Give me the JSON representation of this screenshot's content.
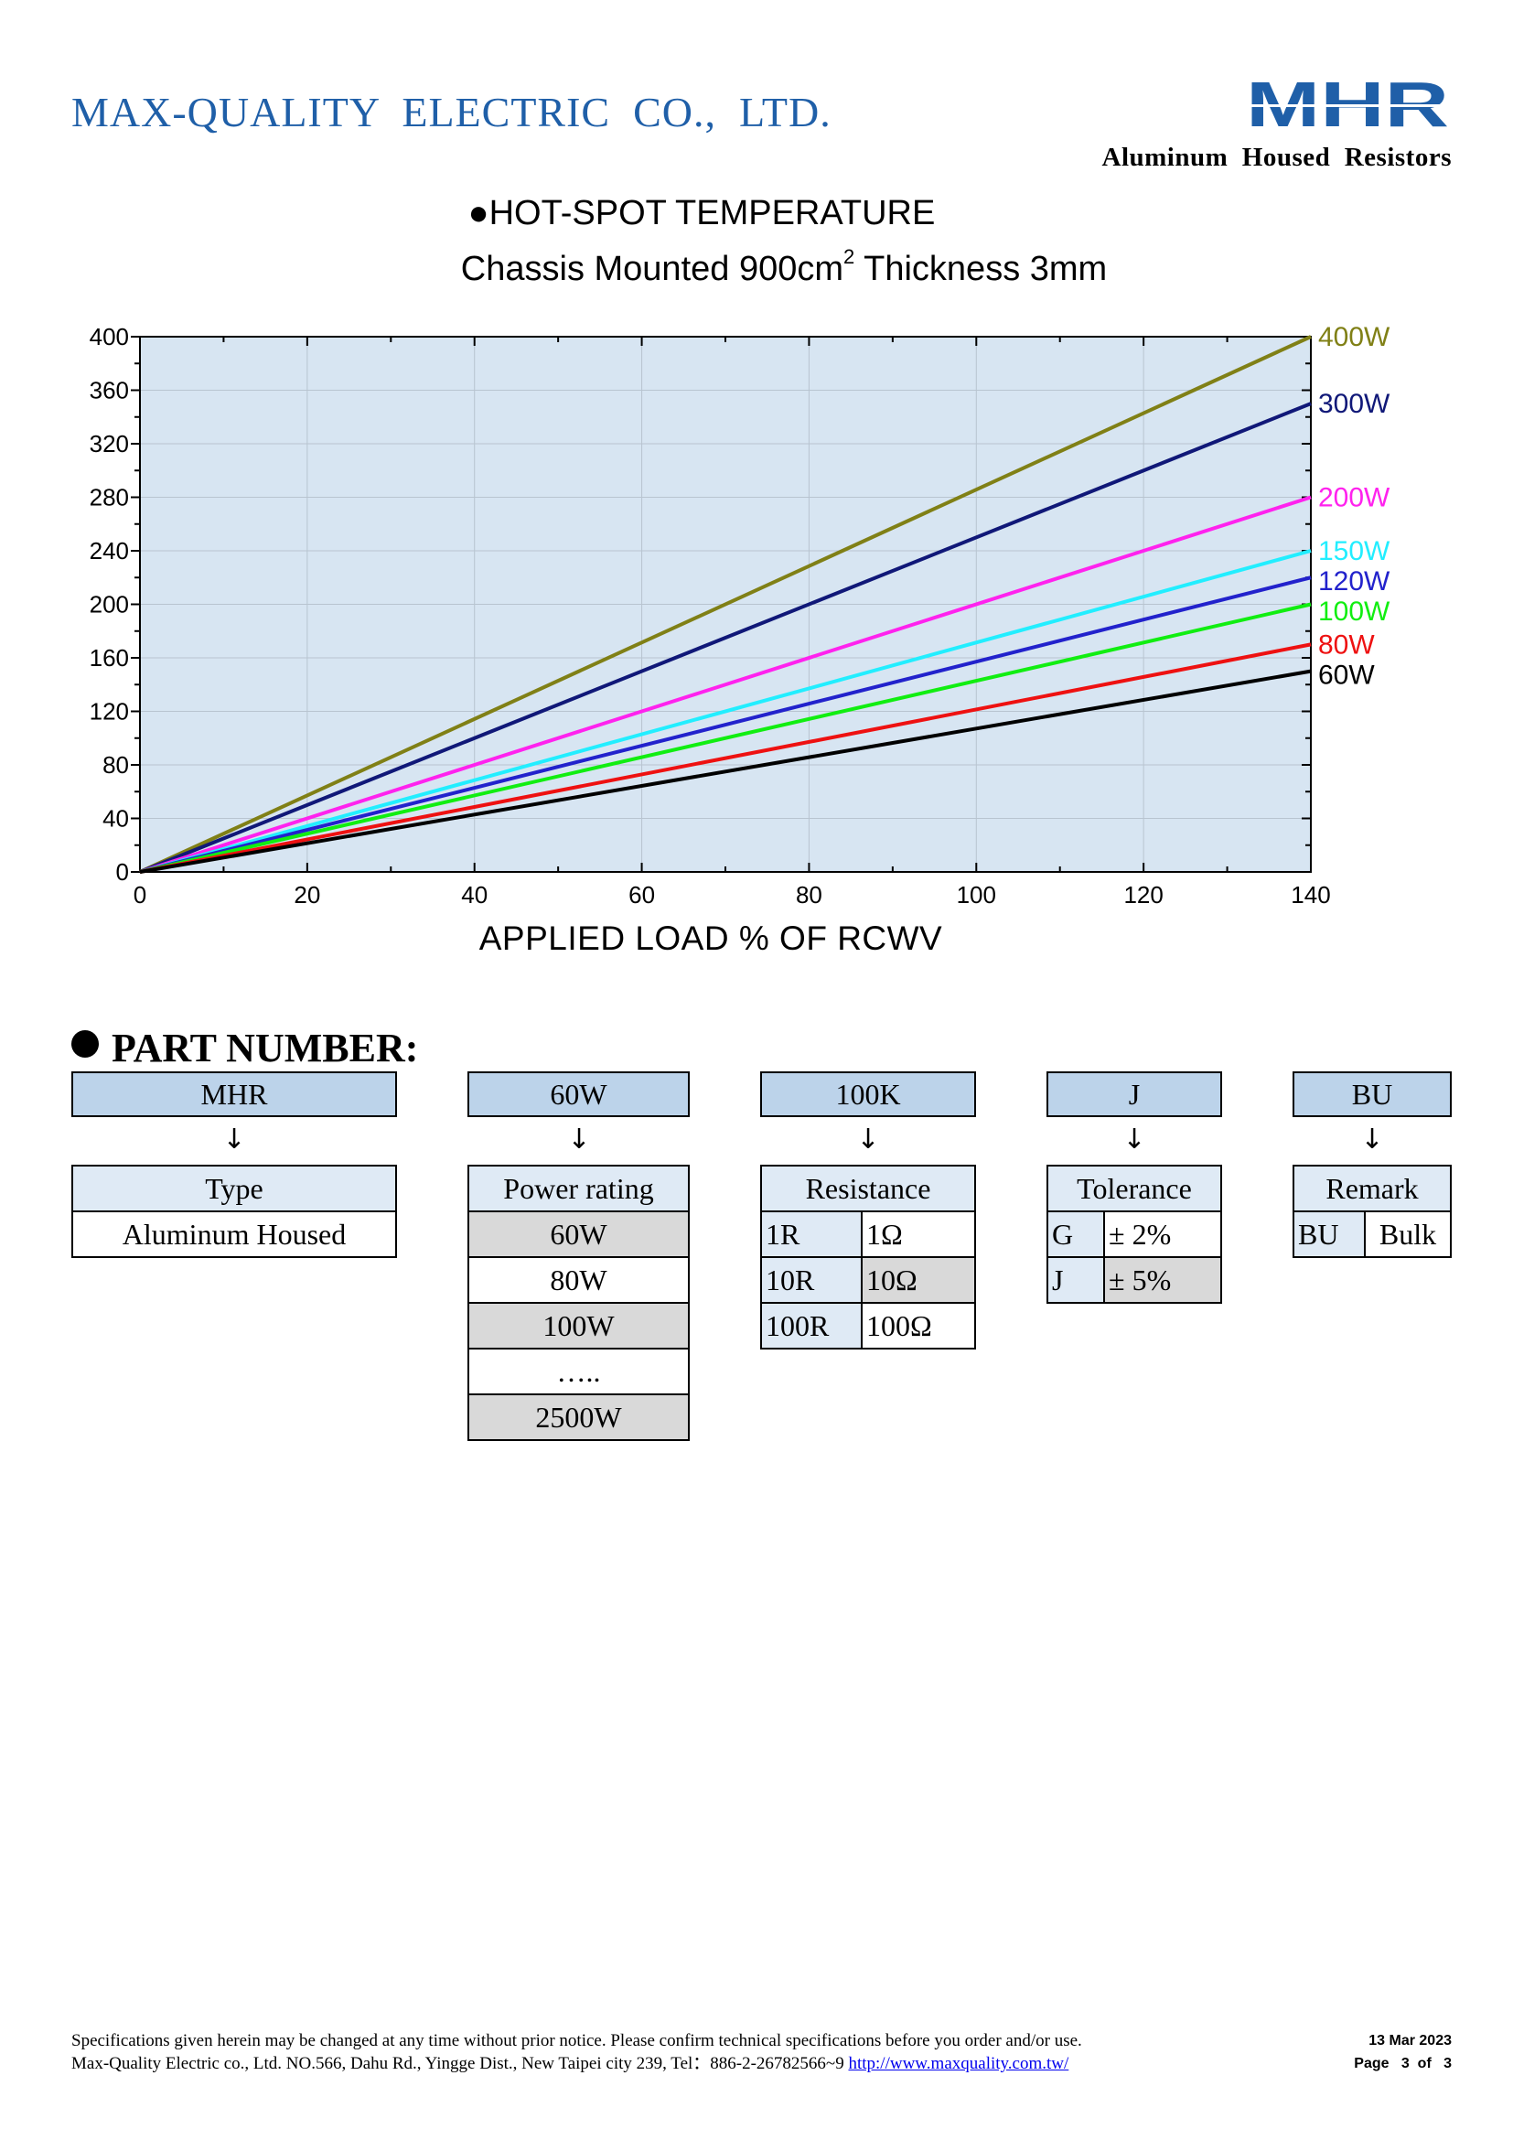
{
  "header": {
    "company": "MAX-QUALITY  ELECTRIC  CO.,  LTD.",
    "logo_text": "MHR",
    "tagline": "Aluminum  Housed  Resistors",
    "logo_color": "#1f5fa8"
  },
  "chart_title": {
    "line1": "●HOT-SPOT TEMPERATURE",
    "line2_pre": "Chassis Mounted 900cm",
    "line2_sup": "2",
    "line2_post": " Thickness 3mm"
  },
  "chart_data": {
    "type": "line",
    "xlabel": "APPLIED LOAD % OF RCWV",
    "ylabel": "",
    "xlim": [
      0,
      140
    ],
    "ylim": [
      0,
      400
    ],
    "xticks": [
      0,
      20,
      40,
      60,
      80,
      100,
      120,
      140
    ],
    "yticks": [
      0,
      40,
      80,
      120,
      160,
      200,
      240,
      280,
      320,
      360,
      400
    ],
    "grid": true,
    "background": "#d7e5f2",
    "series": [
      {
        "name": "400W",
        "color": "#808016",
        "x": [
          0,
          140
        ],
        "y": [
          0,
          400
        ]
      },
      {
        "name": "300W",
        "color": "#101878",
        "x": [
          0,
          140
        ],
        "y": [
          0,
          350
        ]
      },
      {
        "name": "200W",
        "color": "#ff22ee",
        "x": [
          0,
          140
        ],
        "y": [
          0,
          280
        ]
      },
      {
        "name": "150W",
        "color": "#22eeff",
        "x": [
          0,
          140
        ],
        "y": [
          0,
          240
        ]
      },
      {
        "name": "120W",
        "color": "#2222cc",
        "x": [
          0,
          140
        ],
        "y": [
          0,
          220
        ]
      },
      {
        "name": "100W",
        "color": "#11ee11",
        "x": [
          0,
          140
        ],
        "y": [
          0,
          200
        ]
      },
      {
        "name": "80W",
        "color": "#ee1111",
        "x": [
          0,
          140
        ],
        "y": [
          0,
          170
        ]
      },
      {
        "name": "60W",
        "color": "#000000",
        "x": [
          0,
          140
        ],
        "y": [
          0,
          150
        ]
      }
    ]
  },
  "part_number": {
    "heading": "PART NUMBER:",
    "codes": [
      "MHR",
      "60W",
      "100K",
      "J",
      "BU"
    ],
    "arrow": "↓",
    "type": {
      "header": "Type",
      "rows": [
        "Aluminum Housed"
      ]
    },
    "power": {
      "header": "Power rating",
      "rows": [
        "60W",
        "80W",
        "100W",
        "…..",
        "2500W"
      ]
    },
    "resistance": {
      "header": "Resistance",
      "rows": [
        [
          "1R",
          "1Ω"
        ],
        [
          "10R",
          "10Ω"
        ],
        [
          "100R",
          "100Ω"
        ]
      ]
    },
    "tolerance": {
      "header": "Tolerance",
      "rows": [
        [
          "G",
          "±  2%"
        ],
        [
          "J",
          "±  5%"
        ]
      ]
    },
    "remark": {
      "header": "Remark",
      "rows": [
        [
          "BU",
          "Bulk"
        ]
      ]
    }
  },
  "footer": {
    "line1": "Specifications given herein may be changed at any time without prior notice. Please confirm technical specifications before you order and/or use.",
    "line2": "Max-Quality Electric co., Ltd. NO.566, Dahu Rd., Yingge Dist., New Taipei city 239, Tel：886-2-26782566~9 ",
    "link": "http://www.maxquality.com.tw/",
    "date": "13 Mar 2023",
    "page": "Page   3  of   3"
  }
}
